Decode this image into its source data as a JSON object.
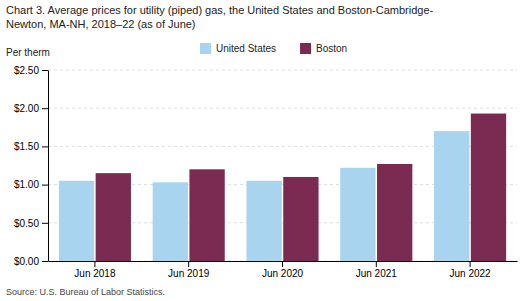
{
  "chart_data": {
    "type": "bar",
    "title": "Chart 3. Average prices for utility (piped) gas, the United States and Boston-Cambridge-",
    "subtitle": "Newton, MA-NH, 2018–22 (as of June)",
    "ylabel": "Per therm",
    "source": "Source: U.S. Bureau of Labor Statistics.",
    "categories": [
      "Jun 2018",
      "Jun 2019",
      "Jun 2020",
      "Jun 2021",
      "Jun 2022"
    ],
    "series": [
      {
        "name": "United States",
        "color": "#a8d4f0",
        "values": [
          1.05,
          1.03,
          1.05,
          1.22,
          1.7
        ]
      },
      {
        "name": "Boston",
        "color": "#7b2a52",
        "values": [
          1.15,
          1.2,
          1.1,
          1.27,
          1.93
        ]
      }
    ],
    "ylim": [
      0,
      2.5
    ],
    "yticks": [
      {
        "value": 0.0,
        "label": "$0.00"
      },
      {
        "value": 0.5,
        "label": "$0.50"
      },
      {
        "value": 1.0,
        "label": "$1.00"
      },
      {
        "value": 1.5,
        "label": "$1.50"
      },
      {
        "value": 2.0,
        "label": "$2.00"
      },
      {
        "value": 2.5,
        "label": "$2.50"
      }
    ],
    "grid": true,
    "legend": "top"
  }
}
